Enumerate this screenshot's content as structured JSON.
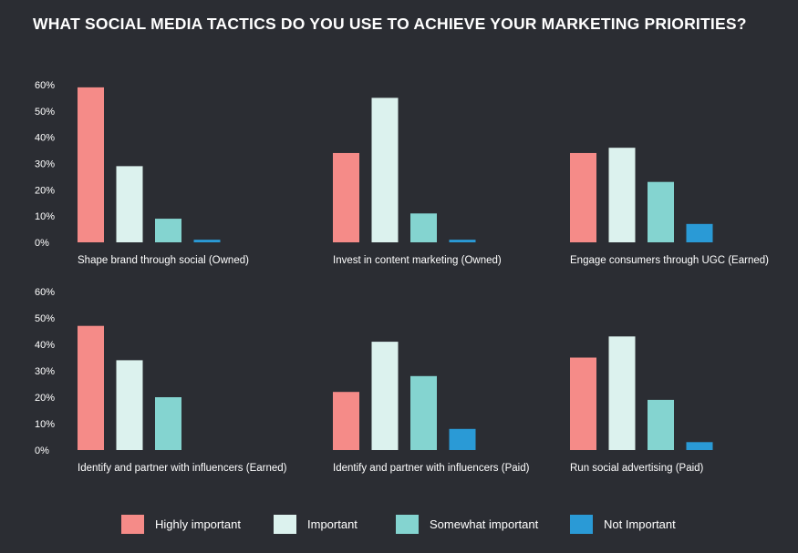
{
  "title": "WHAT SOCIAL MEDIA TACTICS DO YOU USE TO ACHIEVE YOUR MARKETING PRIORITIES?",
  "colors": {
    "background": "#2b2d33",
    "highly_important": "#f58b88",
    "important": "#dcf2ee",
    "somewhat_important": "#84d4d0",
    "not_important": "#2a9ad6"
  },
  "legend": [
    {
      "name": "Highly important",
      "color": "#f58b88"
    },
    {
      "name": "Important",
      "color": "#dcf2ee"
    },
    {
      "name": "Somewhat important",
      "color": "#84d4d0"
    },
    {
      "name": "Not Important",
      "color": "#2a9ad6"
    }
  ],
  "chart_data": {
    "type": "bar",
    "title": "WHAT SOCIAL MEDIA TACTICS DO YOU USE TO ACHIEVE YOUR MARKETING PRIORITIES?",
    "y_ticks": [
      "0%",
      "10%",
      "20%",
      "30%",
      "40%",
      "50%",
      "60%"
    ],
    "ylim": [
      0,
      60
    ],
    "legend_position": "bottom",
    "series_names": [
      "Highly important",
      "Important",
      "Somewhat important",
      "Not Important"
    ],
    "panels": [
      {
        "label": "Shape brand through social (Owned)",
        "values": [
          59,
          29,
          9,
          1
        ]
      },
      {
        "label": "Invest in content marketing (Owned)",
        "values": [
          34,
          55,
          11,
          1
        ]
      },
      {
        "label": "Engage consumers through UGC (Earned)",
        "values": [
          34,
          36,
          23,
          7
        ]
      },
      {
        "label": "Identify and partner with influencers (Earned)",
        "values": [
          47,
          34,
          20,
          null
        ]
      },
      {
        "label": "Identify and partner with influencers (Paid)",
        "values": [
          22,
          41,
          28,
          8
        ]
      },
      {
        "label": "Run social advertising (Paid)",
        "values": [
          35,
          43,
          19,
          3
        ]
      }
    ]
  }
}
